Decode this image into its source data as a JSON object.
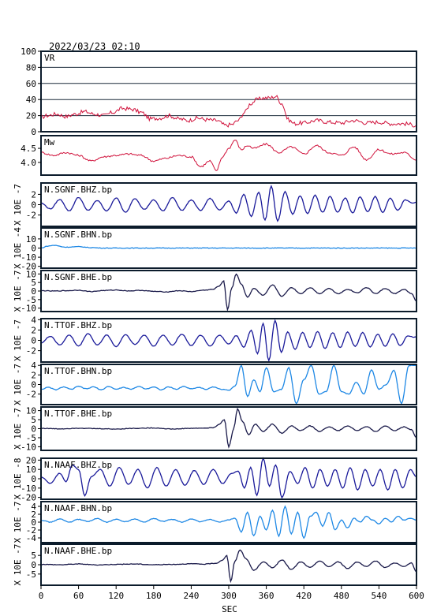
{
  "chart_data": {
    "type": "line",
    "title": "2022/03/23 02:10",
    "xlabel": "SEC",
    "xlim": [
      0,
      600
    ],
    "xticks": [
      0,
      60,
      120,
      180,
      240,
      300,
      360,
      420,
      480,
      540,
      600
    ],
    "panels": [
      {
        "key": "vr",
        "label": "VR",
        "ylabel": "",
        "ylim": [
          0,
          100
        ],
        "yticks": [
          0,
          20,
          40,
          60,
          80,
          100
        ],
        "grid": true,
        "color": "#d0103a",
        "x": [
          0,
          10,
          25,
          40,
          55,
          70,
          85,
          100,
          115,
          130,
          145,
          160,
          175,
          190,
          205,
          220,
          235,
          250,
          265,
          280,
          295,
          305,
          315,
          325,
          335,
          345,
          355,
          365,
          375,
          385,
          395,
          405,
          420,
          440,
          460,
          480,
          500,
          520,
          540,
          560,
          580,
          600
        ],
        "values": [
          18,
          20,
          22,
          19,
          22,
          25,
          22,
          20,
          24,
          29,
          28,
          24,
          16,
          17,
          20,
          16,
          14,
          17,
          15,
          14,
          8,
          9,
          14,
          24,
          35,
          40,
          42,
          42,
          44,
          35,
          15,
          10,
          11,
          14,
          12,
          11,
          14,
          11,
          12,
          10,
          10,
          8
        ]
      },
      {
        "key": "mw",
        "label": "Mw",
        "ylabel": "",
        "ylim": [
          3.55,
          4.95
        ],
        "yticks": [
          4.0,
          4.5
        ],
        "ytick_labels": [
          "4.0",
          "4.5"
        ],
        "grid": false,
        "color": "#d0103a",
        "x": [
          0,
          20,
          40,
          60,
          80,
          100,
          120,
          140,
          160,
          180,
          200,
          220,
          240,
          255,
          270,
          280,
          290,
          300,
          310,
          320,
          330,
          340,
          360,
          380,
          400,
          420,
          440,
          460,
          480,
          500,
          520,
          540,
          560,
          580,
          600
        ],
        "values": [
          4.35,
          4.25,
          4.35,
          4.25,
          4.05,
          4.2,
          4.25,
          4.3,
          4.25,
          4.05,
          4.15,
          4.25,
          4.2,
          3.85,
          4.05,
          3.7,
          4.2,
          4.5,
          4.8,
          4.45,
          4.6,
          4.5,
          4.65,
          4.35,
          4.55,
          4.3,
          4.6,
          4.35,
          4.25,
          4.55,
          4.1,
          4.45,
          4.3,
          4.35,
          4.1
        ]
      },
      {
        "key": "sgnf_bhz",
        "label": "N.SGNF.BHZ.bp",
        "ylabel": "X 10E -7",
        "ylim": [
          -4.2,
          4.2
        ],
        "yticks": [
          -2,
          0,
          2
        ],
        "color": "#1a1a9a",
        "x": [
          0,
          15,
          30,
          45,
          60,
          75,
          90,
          105,
          120,
          135,
          150,
          165,
          180,
          195,
          210,
          225,
          240,
          255,
          270,
          285,
          300,
          312,
          324,
          336,
          348,
          358,
          368,
          378,
          390,
          402,
          414,
          426,
          438,
          450,
          462,
          474,
          486,
          498,
          510,
          522,
          534,
          546,
          558,
          570,
          582,
          594,
          600
        ],
        "values": [
          0.3,
          -0.8,
          1.0,
          -1.2,
          1.4,
          -1.1,
          0.8,
          -1.2,
          1.3,
          -1.5,
          1.2,
          -0.9,
          0.9,
          -1.2,
          1.4,
          -1.1,
          0.9,
          -1.1,
          1.2,
          -1.0,
          0.7,
          -1.6,
          2.0,
          -2.3,
          2.4,
          -3.0,
          3.6,
          -3.2,
          2.5,
          -1.8,
          1.7,
          -1.7,
          1.8,
          -1.5,
          1.6,
          -1.5,
          1.3,
          -1.6,
          1.5,
          -1.4,
          1.6,
          -1.5,
          1.3,
          -1.1,
          0.9,
          0.3,
          0.5
        ]
      },
      {
        "key": "sgnf_bhn",
        "label": "N.SGNF.BHN.bp",
        "ylabel": "X 10E -4",
        "ylim": [
          -22,
          22
        ],
        "yticks": [
          -20,
          -10,
          0,
          10
        ],
        "color": "#1e88e5",
        "x": [
          0,
          10,
          20,
          40,
          60,
          80,
          100,
          600
        ],
        "values": [
          0,
          2,
          3,
          1,
          1.5,
          0.5,
          0,
          0
        ]
      },
      {
        "key": "sgnf_bhe",
        "label": "N.SGNF.BHE.bp",
        "ylabel": "X 10E -7",
        "ylim": [
          -12,
          12
        ],
        "yticks": [
          -10,
          -5,
          0,
          5,
          10
        ],
        "color": "#1a1a4a",
        "x": [
          0,
          20,
          40,
          60,
          80,
          100,
          120,
          140,
          160,
          180,
          200,
          220,
          240,
          260,
          275,
          285,
          292,
          298,
          305,
          312,
          320,
          330,
          340,
          355,
          370,
          385,
          400,
          415,
          430,
          445,
          460,
          475,
          490,
          505,
          520,
          535,
          550,
          565,
          580,
          592,
          600
        ],
        "values": [
          0.2,
          0.0,
          0.2,
          0.5,
          -0.3,
          0.3,
          0.6,
          0.1,
          0.4,
          -0.2,
          -0.5,
          0.2,
          -0.3,
          0.5,
          1.0,
          3.0,
          6.0,
          -11.0,
          2.0,
          10.0,
          4.0,
          -3.5,
          1.5,
          -2.5,
          3.5,
          -3.0,
          2.0,
          -1.5,
          2.0,
          -1.5,
          1.5,
          -1.5,
          1.0,
          -1.0,
          2.0,
          -1.5,
          1.5,
          -1.5,
          1.0,
          -1.5,
          -6.0
        ]
      },
      {
        "key": "ttof_bhz",
        "label": "N.TTOF.BHZ.bp",
        "ylabel": "X 10E -7",
        "ylim": [
          -4.2,
          4.2
        ],
        "yticks": [
          -2,
          0,
          2,
          4
        ],
        "color": "#1a1a9a",
        "x": [
          0,
          15,
          30,
          45,
          60,
          75,
          90,
          105,
          120,
          135,
          150,
          165,
          180,
          195,
          210,
          225,
          240,
          255,
          270,
          285,
          300,
          312,
          324,
          336,
          346,
          355,
          364,
          374,
          384,
          394,
          406,
          418,
          430,
          442,
          454,
          466,
          478,
          490,
          502,
          514,
          526,
          538,
          550,
          562,
          574,
          586,
          600
        ],
        "values": [
          -0.5,
          0.8,
          -0.9,
          1.0,
          -1.1,
          1.3,
          -0.9,
          1.0,
          -1.2,
          1.1,
          -0.8,
          1.0,
          -1.1,
          1.0,
          -0.9,
          1.2,
          -1.0,
          1.0,
          -1.1,
          1.0,
          -0.7,
          0.9,
          -1.3,
          2.0,
          -2.6,
          3.3,
          -3.9,
          3.8,
          -2.4,
          1.6,
          -1.7,
          1.5,
          -1.4,
          1.7,
          -1.6,
          1.5,
          -1.4,
          1.6,
          -1.2,
          1.5,
          -1.3,
          1.2,
          -1.2,
          1.3,
          -1.0,
          0.8,
          0.6
        ]
      },
      {
        "key": "ttof_bhn",
        "label": "N.TTOF.BHN.bp",
        "ylabel": "X 10E -7",
        "ylim": [
          -4.2,
          4.2
        ],
        "yticks": [
          -2,
          0,
          2,
          4
        ],
        "color": "#1e88e5",
        "x": [
          0,
          12,
          24,
          36,
          48,
          60,
          72,
          84,
          96,
          108,
          120,
          132,
          144,
          156,
          168,
          180,
          192,
          204,
          216,
          228,
          240,
          252,
          264,
          276,
          288,
          300,
          310,
          320,
          330,
          340,
          350,
          360,
          372,
          384,
          396,
          408,
          420,
          432,
          444,
          456,
          468,
          480,
          492,
          504,
          516,
          528,
          540,
          552,
          564,
          576,
          588,
          600
        ],
        "values": [
          -1.0,
          -0.6,
          -1.1,
          -0.5,
          -1.0,
          -0.4,
          -0.9,
          -0.5,
          -1.1,
          -0.4,
          -1.0,
          -0.6,
          -1.0,
          -0.4,
          -0.9,
          -0.5,
          -1.1,
          -0.5,
          -1.0,
          -0.4,
          -0.9,
          -0.6,
          -1.0,
          -0.5,
          -1.0,
          -1.2,
          -0.3,
          4.0,
          -2.5,
          1.0,
          -1.5,
          3.5,
          -1.5,
          -1.0,
          3.5,
          -4.0,
          1.0,
          4.0,
          -2.0,
          -1.5,
          4.0,
          -1.5,
          -2.0,
          0.5,
          -2.0,
          3.0,
          -1.0,
          0.0,
          3.0,
          -4.0,
          4.0,
          4.0
        ]
      },
      {
        "key": "ttof_bhe",
        "label": "N.TTOF.BHE.bp",
        "ylabel": "X 10E -7",
        "ylim": [
          -12,
          12
        ],
        "yticks": [
          -10,
          -5,
          0,
          5,
          10
        ],
        "color": "#1a1a4a",
        "x": [
          0,
          30,
          60,
          90,
          120,
          150,
          180,
          210,
          240,
          260,
          275,
          285,
          293,
          300,
          308,
          314,
          322,
          332,
          342,
          355,
          370,
          385,
          400,
          415,
          430,
          445,
          460,
          475,
          490,
          505,
          520,
          535,
          550,
          565,
          580,
          592,
          600
        ],
        "values": [
          0.2,
          -0.1,
          0.3,
          0.0,
          -0.2,
          0.2,
          0.4,
          -0.2,
          0.2,
          0.3,
          0.5,
          2.5,
          5.0,
          -10.0,
          0.0,
          11.0,
          4.0,
          -3.5,
          2.5,
          -1.5,
          2.5,
          -2.5,
          1.5,
          -1.0,
          1.5,
          -1.5,
          1.0,
          -1.0,
          1.5,
          -1.0,
          1.0,
          -1.5,
          1.5,
          -1.0,
          1.0,
          -0.5,
          -5.0
        ]
      },
      {
        "key": "naaf_bhz",
        "label": "N.NAAF.BHZ.bp",
        "ylabel": "X 10E -8",
        "ylim": [
          -22,
          22
        ],
        "yticks": [
          -20,
          -10,
          0,
          10,
          20
        ],
        "color": "#1a1a9a",
        "x": [
          0,
          15,
          30,
          40,
          50,
          60,
          70,
          80,
          95,
          110,
          125,
          140,
          155,
          170,
          185,
          200,
          215,
          230,
          245,
          260,
          275,
          290,
          305,
          315,
          325,
          335,
          345,
          355,
          365,
          375,
          385,
          398,
          410,
          422,
          434,
          446,
          458,
          470,
          482,
          494,
          506,
          518,
          530,
          542,
          554,
          566,
          578,
          590,
          600
        ],
        "values": [
          2.0,
          -5.0,
          6.0,
          -3.0,
          15.0,
          10.0,
          -18.0,
          2.0,
          10.0,
          -8.0,
          12.0,
          -6.0,
          10.0,
          -10.0,
          12.0,
          -8.0,
          10.0,
          -7.0,
          9.0,
          -6.0,
          10.0,
          -5.0,
          6.0,
          8.0,
          -10.0,
          12.0,
          -18.0,
          22.0,
          -8.0,
          15.0,
          -20.0,
          8.0,
          -5.0,
          12.0,
          -10.0,
          10.0,
          -8.0,
          10.0,
          -10.0,
          12.0,
          -12.0,
          10.0,
          -8.0,
          10.0,
          -12.0,
          10.0,
          -10.0,
          10.0,
          2.0
        ]
      },
      {
        "key": "naaf_bhn",
        "label": "N.NAAF.BHN.bp",
        "ylabel": "X 10E -7",
        "ylim": [
          -5.2,
          5.2
        ],
        "yticks": [
          -4,
          -2,
          0,
          2,
          4
        ],
        "color": "#1e88e5",
        "x": [
          0,
          15,
          30,
          45,
          60,
          75,
          90,
          105,
          120,
          135,
          150,
          165,
          180,
          195,
          210,
          225,
          240,
          255,
          270,
          285,
          300,
          310,
          320,
          330,
          340,
          350,
          360,
          370,
          380,
          390,
          400,
          410,
          420,
          430,
          440,
          450,
          460,
          470,
          480,
          490,
          500,
          510,
          520,
          530,
          540,
          550,
          560,
          570,
          580,
          590,
          600
        ],
        "values": [
          0.5,
          0.0,
          0.8,
          0.0,
          0.7,
          0.2,
          0.9,
          0.0,
          0.7,
          0.1,
          0.8,
          0.0,
          0.9,
          0.2,
          0.7,
          0.0,
          0.8,
          0.1,
          0.7,
          0.0,
          0.6,
          1.0,
          -2.5,
          2.5,
          -3.5,
          1.5,
          -2.0,
          3.0,
          -3.5,
          4.0,
          -3.0,
          2.5,
          -4.0,
          1.5,
          2.5,
          -1.0,
          2.5,
          -2.0,
          0.5,
          -1.5,
          1.0,
          0.0,
          1.5,
          0.5,
          -0.5,
          1.0,
          0.0,
          1.5,
          0.5,
          1.0,
          0.5
        ]
      },
      {
        "key": "naaf_bhe",
        "label": "N.NAAF.BHE.bp",
        "ylabel": "X 10E -7",
        "ylim": [
          -11,
          11
        ],
        "yticks": [
          -5,
          0,
          5
        ],
        "color": "#1a1a4a",
        "x": [
          0,
          30,
          60,
          90,
          120,
          150,
          180,
          210,
          240,
          260,
          280,
          290,
          297,
          303,
          310,
          318,
          328,
          340,
          355,
          370,
          385,
          400,
          415,
          430,
          445,
          460,
          475,
          490,
          505,
          520,
          535,
          550,
          565,
          580,
          592,
          600
        ],
        "values": [
          0.2,
          0.0,
          0.4,
          -0.1,
          0.2,
          0.4,
          0.0,
          0.2,
          0.5,
          0.3,
          0.8,
          2.5,
          5.0,
          -9.0,
          2.0,
          8.0,
          3.0,
          -3.0,
          1.5,
          -1.5,
          2.5,
          -2.5,
          1.5,
          -1.5,
          2.0,
          -1.0,
          1.5,
          -2.0,
          1.5,
          -1.0,
          2.0,
          -1.5,
          1.0,
          -1.0,
          1.0,
          -4.0
        ]
      }
    ]
  }
}
